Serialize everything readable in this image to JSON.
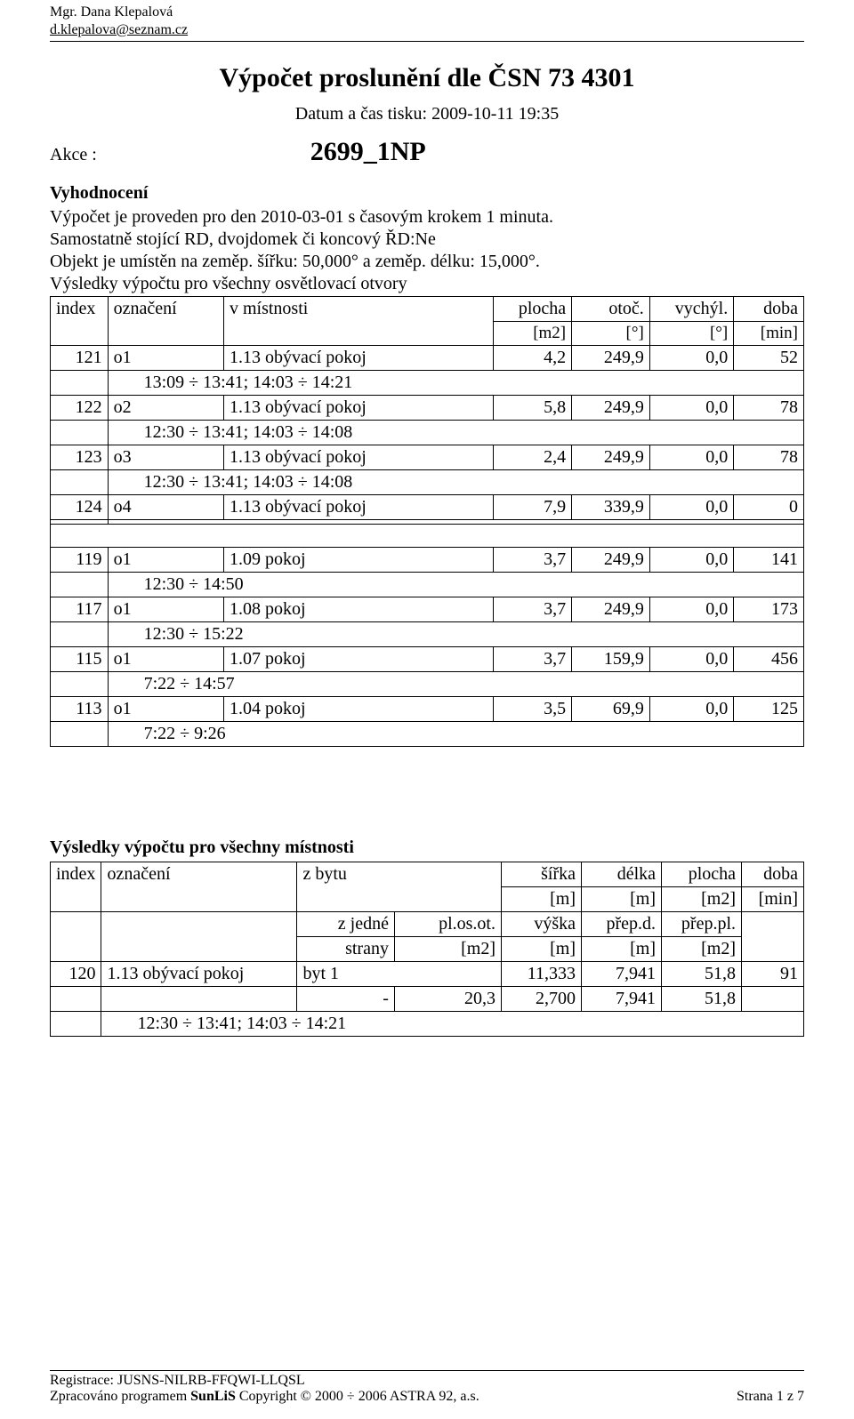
{
  "header": {
    "author": "Mgr. Dana Klepalová",
    "email": "d.klepalova@seznam.cz"
  },
  "title": "Výpočet proslunění dle  ČSN 73 4301",
  "datum_line": "Datum a čas tisku: 2009-10-11 19:35",
  "akce_label": "Akce :",
  "akce_value": "2699_1NP",
  "eval_head": "Vyhodnocení",
  "eval_line1": "Výpočet je proveden pro den 2010-03-01 s časovým krokem 1 minuta.",
  "eval_line2": "Samostatně stojící RD, dvojdomek či koncový ŘD:Ne",
  "eval_line3": "Objekt je umístěn na zeměp. šířku: 50,000°  a  zeměp. délku: 15,000°.",
  "otvory_head": "Výsledky výpočtu pro všechny osvětlovací otvory",
  "otvory_cols": {
    "index": "index",
    "oznaceni": "označení",
    "v_mistnosti": "v místnosti",
    "plocha": "plocha",
    "plocha_u": "[m2]",
    "otoc": "otoč.",
    "otoc_u": "[°]",
    "vychyl": "vychýl.",
    "vychyl_u": "[°]",
    "doba": "doba",
    "doba_u": "[min]"
  },
  "otvory_rows": [
    {
      "idx": "121",
      "ozn": "o1",
      "mist": "1.13 obývací pokoj",
      "plocha": "4,2",
      "otoc": "249,9",
      "vychyl": "0,0",
      "doba": "52",
      "time": "13:09 ÷ 13:41; 14:03 ÷ 14:21"
    },
    {
      "idx": "122",
      "ozn": "o2",
      "mist": "1.13 obývací pokoj",
      "plocha": "5,8",
      "otoc": "249,9",
      "vychyl": "0,0",
      "doba": "78",
      "time": "12:30 ÷ 13:41; 14:03 ÷ 14:08"
    },
    {
      "idx": "123",
      "ozn": "o3",
      "mist": "1.13 obývací pokoj",
      "plocha": "2,4",
      "otoc": "249,9",
      "vychyl": "0,0",
      "doba": "78",
      "time": "12:30 ÷ 13:41; 14:03 ÷ 14:08"
    },
    {
      "idx": "124",
      "ozn": "o4",
      "mist": "1.13 obývací pokoj",
      "plocha": "7,9",
      "otoc": "339,9",
      "vychyl": "0,0",
      "doba": "0",
      "time": ""
    },
    {
      "blank": true
    },
    {
      "idx": "119",
      "ozn": "o1",
      "mist": "1.09 pokoj",
      "plocha": "3,7",
      "otoc": "249,9",
      "vychyl": "0,0",
      "doba": "141",
      "time": "12:30 ÷ 14:50"
    },
    {
      "idx": "117",
      "ozn": "o1",
      "mist": "1.08 pokoj",
      "plocha": "3,7",
      "otoc": "249,9",
      "vychyl": "0,0",
      "doba": "173",
      "time": "12:30 ÷ 15:22"
    },
    {
      "idx": "115",
      "ozn": "o1",
      "mist": "1.07 pokoj",
      "plocha": "3,7",
      "otoc": "159,9",
      "vychyl": "0,0",
      "doba": "456",
      "time": "7:22 ÷ 14:57"
    },
    {
      "idx": "113",
      "ozn": "o1",
      "mist": "1.04 pokoj",
      "plocha": "3,5",
      "otoc": "69,9",
      "vychyl": "0,0",
      "doba": "125",
      "time": "7:22 ÷  9:26"
    }
  ],
  "mistnosti_head": "Výsledky výpočtu pro všechny místnosti",
  "mistnosti_cols": {
    "index": "index",
    "oznaceni": "označení",
    "zbytu": "z bytu",
    "sirka": "šířka",
    "sirka_u": "[m]",
    "delka": "délka",
    "delka_u": "[m]",
    "plocha": "plocha",
    "plocha_u": "[m2]",
    "doba": "doba",
    "doba_u": "[min]",
    "zjedne": "z jedné",
    "strany": "strany",
    "plosot": "pl.os.ot.",
    "plosot_u": "[m2]",
    "vyska": "výška",
    "vyska_u": "[m]",
    "prepd": "přep.d.",
    "prepd_u": "[m]",
    "preppl": "přep.pl.",
    "preppl_u": "[m2]"
  },
  "mistnosti_row": {
    "idx": "120",
    "ozn": "1.13 obývací pokoj",
    "zbytu": "byt 1",
    "sirka": "11,333",
    "delka": "7,941",
    "plocha": "51,8",
    "doba": "91",
    "zjedne": "-",
    "plosot": "20,3",
    "vyska": "2,700",
    "prepd": "7,941",
    "preppl": "51,8",
    "time": "12:30 ÷ 13:41; 14:03 ÷ 14:21"
  },
  "footer": {
    "reg": "Registrace: JUSNS-NILRB-FFQWI-LLQSL",
    "prog_prefix": "Zpracováno programem ",
    "prog_name": "SunLiS",
    "prog_suffix": "  Copyright © 2000 ÷ 2006 ASTRA 92, a.s.",
    "page": "Strana  1 z  7"
  }
}
